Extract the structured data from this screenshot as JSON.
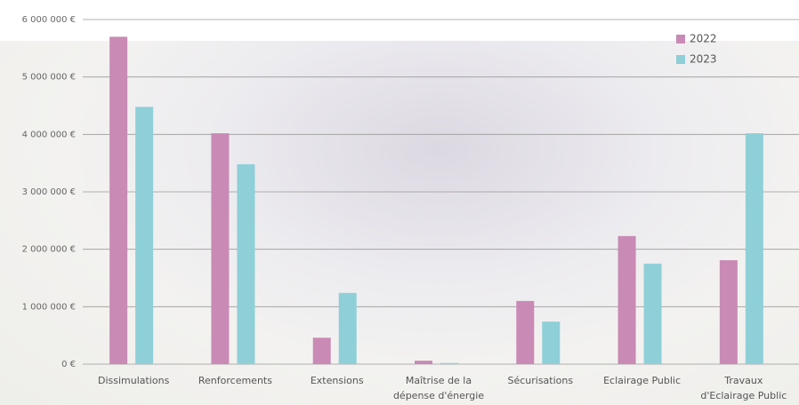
{
  "chart_data": {
    "type": "bar",
    "categories": [
      "Dissimulations",
      "Renforcements",
      "Extensions",
      "Maîtrise de la\ndépense d'énergie",
      "Sécurisations",
      "Eclairage Public",
      "Travaux\nd'Eclairage Public"
    ],
    "series": [
      {
        "name": "2022",
        "color": "#c98ab5",
        "values": [
          5700000,
          4020000,
          460000,
          60000,
          1100000,
          2230000,
          1810000
        ]
      },
      {
        "name": "2023",
        "color": "#8fcfd8",
        "values": [
          4480000,
          3480000,
          1240000,
          20000,
          740000,
          1750000,
          4020000
        ]
      }
    ],
    "ylim": [
      0,
      6000000
    ],
    "yticks": [
      {
        "value": 0,
        "label": "0 €"
      },
      {
        "value": 1000000,
        "label": "1 000 000 €"
      },
      {
        "value": 2000000,
        "label": "2 000 000 €"
      },
      {
        "value": 3000000,
        "label": "3 000 000 €"
      },
      {
        "value": 4000000,
        "label": "4 000 000 €"
      },
      {
        "value": 5000000,
        "label": "5 000 000 €"
      },
      {
        "value": 6000000,
        "label": "6 000 000 €"
      }
    ],
    "grid": true
  }
}
